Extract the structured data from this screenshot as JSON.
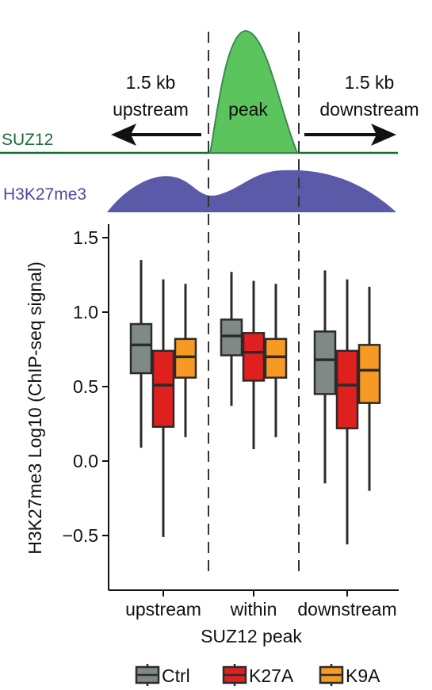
{
  "schematic": {
    "suz12_label": "SUZ12",
    "h3k27me3_label": "H3K27me3",
    "upstream_distance": "1.5 kb",
    "upstream_label": "upstream",
    "peak_label": "peak",
    "downstream_distance": "1.5 kb",
    "downstream_label": "downstream",
    "colors": {
      "suz12_line": "#1e6b3a",
      "suz12_peak_fill": "#5cc45c",
      "suz12_peak_stroke": "#3a8a50",
      "h3k27me3_fill": "#5a5aa8",
      "h3k27me3_text": "#4a4a9a"
    }
  },
  "chart_data": {
    "type": "box",
    "title": "",
    "xlabel": "SUZ12 peak",
    "ylabel": "H3K27me3 Log10 (ChIP-seq signal)",
    "categories": [
      "upstream",
      "within",
      "downstream"
    ],
    "ylim": [
      -0.85,
      1.65
    ],
    "yticks": [
      -0.5,
      0.0,
      0.5,
      1.0,
      1.5
    ],
    "ytick_labels": [
      "−0.5",
      "0.0",
      "0.5",
      "1.0",
      "1.5"
    ],
    "grid": false,
    "legend_position": "bottom",
    "series": [
      {
        "name": "Ctrl",
        "color": "#7f8a87",
        "boxes": [
          {
            "whisker_low": 0.09,
            "q1": 0.59,
            "median": 0.78,
            "q3": 0.92,
            "whisker_high": 1.35
          },
          {
            "whisker_low": 0.37,
            "q1": 0.71,
            "median": 0.84,
            "q3": 0.95,
            "whisker_high": 1.27
          },
          {
            "whisker_low": -0.15,
            "q1": 0.45,
            "median": 0.68,
            "q3": 0.87,
            "whisker_high": 1.28
          }
        ]
      },
      {
        "name": "K27A",
        "color": "#e01f1f",
        "boxes": [
          {
            "whisker_low": -0.51,
            "q1": 0.23,
            "median": 0.51,
            "q3": 0.74,
            "whisker_high": 1.22
          },
          {
            "whisker_low": 0.08,
            "q1": 0.54,
            "median": 0.73,
            "q3": 0.86,
            "whisker_high": 1.21
          },
          {
            "whisker_low": -0.56,
            "q1": 0.22,
            "median": 0.51,
            "q3": 0.74,
            "whisker_high": 1.22
          }
        ]
      },
      {
        "name": "K9A",
        "color": "#f79a23",
        "boxes": [
          {
            "whisker_low": 0.16,
            "q1": 0.56,
            "median": 0.7,
            "q3": 0.82,
            "whisker_high": 1.19
          },
          {
            "whisker_low": 0.16,
            "q1": 0.56,
            "median": 0.7,
            "q3": 0.82,
            "whisker_high": 1.19
          },
          {
            "whisker_low": -0.2,
            "q1": 0.39,
            "median": 0.61,
            "q3": 0.78,
            "whisker_high": 1.17
          }
        ]
      }
    ]
  }
}
